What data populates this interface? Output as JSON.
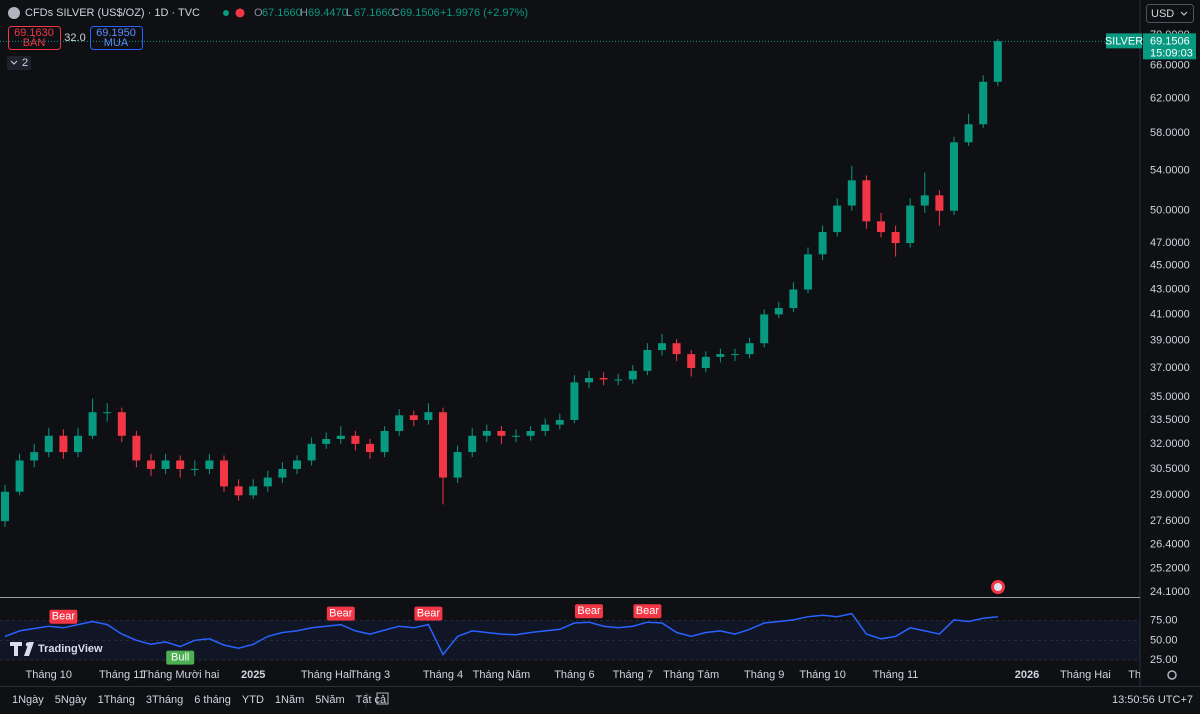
{
  "header": {
    "symbol": "CFDs SILVER (US$/OZ) · 1D · TVC",
    "ohlc": [
      {
        "label": "O",
        "value": "67.1660"
      },
      {
        "label": "H",
        "value": "69.4470"
      },
      {
        "label": "L",
        "value": "67.1660"
      },
      {
        "label": "C",
        "value": "69.1506"
      }
    ],
    "change": "+1.9976 (+2.97%)",
    "sell_price": "69.1630",
    "sell_label": "BÁN",
    "spread": "32.0",
    "buy_price": "69.1950",
    "buy_label": "MUA",
    "indicators_count": "2",
    "currency": "USD",
    "logo": "TradingView"
  },
  "toolbar": {
    "ranges": [
      "1Ngày",
      "5Ngày",
      "1Tháng",
      "3Tháng",
      "6 tháng",
      "YTD",
      "1Năm",
      "5Năm",
      "Tất cả"
    ],
    "clock": "13:50:56 UTC+7"
  },
  "chart_data": [
    {
      "type": "candlestick",
      "log_scale": true,
      "up_color": "#089981",
      "down_color": "#f23645",
      "categories": [
        null,
        null,
        null,
        "Tháng 10",
        null,
        null,
        null,
        null,
        "Tháng 11",
        null,
        null,
        null,
        "Tháng Mười hai",
        null,
        null,
        null,
        null,
        "2025",
        null,
        null,
        null,
        null,
        "Tháng Hai",
        null,
        null,
        "Tháng 3",
        null,
        null,
        null,
        null,
        "Tháng 4",
        null,
        null,
        null,
        "Tháng Năm",
        null,
        null,
        null,
        null,
        "Tháng 6",
        null,
        null,
        null,
        "Tháng 7",
        null,
        null,
        null,
        "Tháng Tám",
        null,
        null,
        null,
        null,
        "Tháng 9",
        null,
        null,
        null,
        "Tháng 10",
        null,
        null,
        null,
        null,
        "Tháng 11",
        null,
        null,
        null,
        null,
        null,
        null,
        null,
        null,
        "2026",
        null,
        null,
        null,
        "Tháng Hai",
        null,
        null,
        null,
        "Tháng"
      ],
      "open": [
        27.6,
        29.2,
        31,
        31.5,
        32.5,
        31.5,
        32.5,
        34,
        34,
        32.5,
        31,
        30.5,
        31,
        30.5,
        30.5,
        31,
        29.5,
        29,
        29.5,
        30,
        30.5,
        31,
        32,
        32.3,
        32.5,
        32,
        31.5,
        32.8,
        33.8,
        33.5,
        34,
        30,
        31.5,
        32.5,
        32.8,
        32.5,
        32.5,
        32.8,
        33.2,
        33.5,
        36,
        36.3,
        36.2,
        36.2,
        36.8,
        38.3,
        38.8,
        38,
        37,
        37.8,
        38,
        38,
        38.8,
        41,
        41.5,
        43,
        46,
        48,
        50.5,
        53,
        49,
        48,
        47,
        50.5,
        51.5,
        50,
        57,
        59,
        64,
        null,
        null,
        null,
        null,
        null,
        null,
        null,
        null,
        null,
        null
      ],
      "high": [
        29.6,
        31.4,
        32,
        33,
        32.9,
        33,
        34.9,
        34.6,
        34.3,
        32.8,
        31.4,
        31.4,
        31.3,
        31,
        31.4,
        31.3,
        29.9,
        29.9,
        30.4,
        30.9,
        31.3,
        32.4,
        32.7,
        33.1,
        32.8,
        32.3,
        33.1,
        34.2,
        34.1,
        34.6,
        34.3,
        31.9,
        33,
        33.2,
        33.1,
        32.9,
        33.1,
        33.6,
        33.9,
        36.5,
        36.8,
        36.7,
        36.6,
        37.2,
        38.8,
        39.5,
        39.1,
        38.3,
        38.2,
        38.4,
        38.4,
        39.2,
        41.4,
        42,
        43.6,
        46.6,
        48.6,
        51.2,
        54.5,
        53.5,
        49.8,
        48.6,
        51.2,
        53.8,
        52,
        57.6,
        60.2,
        64.8,
        69.45,
        null,
        null,
        null,
        null,
        null,
        null,
        null,
        null,
        null,
        null
      ],
      "low": [
        27.3,
        29,
        30.6,
        31.2,
        31.1,
        31.2,
        32.3,
        33.4,
        32.1,
        30.6,
        30.1,
        30.2,
        30,
        30.1,
        30.2,
        29.2,
        28.7,
        28.8,
        29.2,
        29.7,
        30.2,
        30.7,
        31.7,
        32,
        31.6,
        31.1,
        31.2,
        32.5,
        33.1,
        33.2,
        28.5,
        29.7,
        31.2,
        32.1,
        32,
        32.1,
        32.2,
        32.5,
        32.9,
        33.3,
        35.6,
        35.8,
        35.8,
        35.9,
        36.5,
        37.9,
        37.5,
        36.4,
        36.7,
        37.4,
        37.5,
        37.7,
        38.5,
        40.7,
        41.2,
        42.7,
        45.5,
        47.6,
        50,
        48.3,
        47.5,
        45.8,
        46.6,
        49.8,
        48.6,
        49.6,
        56.6,
        58.6,
        63.5,
        null,
        null,
        null,
        null,
        null,
        null,
        null,
        null,
        null,
        null
      ],
      "close": [
        29.2,
        31,
        31.5,
        32.5,
        31.5,
        32.5,
        34,
        34,
        32.5,
        31,
        30.5,
        31,
        30.5,
        30.5,
        31,
        29.5,
        29,
        29.5,
        30,
        30.5,
        31,
        32,
        32.3,
        32.5,
        32,
        31.5,
        32.8,
        33.8,
        33.5,
        34,
        30,
        31.5,
        32.5,
        32.8,
        32.5,
        32.5,
        32.8,
        33.2,
        33.5,
        36,
        36.3,
        36.2,
        36.2,
        36.8,
        38.3,
        38.8,
        38,
        37,
        37.8,
        38,
        38,
        38.8,
        41,
        41.5,
        43,
        46,
        48,
        50.5,
        53,
        49,
        48,
        47,
        50.5,
        51.5,
        50,
        57,
        59,
        64,
        69.15,
        null,
        null,
        null,
        null,
        null,
        null,
        null,
        null,
        null,
        null
      ],
      "ylim": [
        23.87,
        70.67
      ],
      "yticks": [
        {
          "value": 70,
          "label": "70.0000"
        },
        {
          "value": 66,
          "label": "66.0000"
        },
        {
          "value": 62,
          "label": "62.0000"
        },
        {
          "value": 58,
          "label": "58.0000"
        },
        {
          "value": 54,
          "label": "54.0000"
        },
        {
          "value": 50,
          "label": "50.0000"
        },
        {
          "value": 47,
          "label": "47.0000"
        },
        {
          "value": 45,
          "label": "45.0000"
        },
        {
          "value": 43,
          "label": "43.0000"
        },
        {
          "value": 41,
          "label": "41.0000"
        },
        {
          "value": 39,
          "label": "39.0000"
        },
        {
          "value": 37,
          "label": "37.0000"
        },
        {
          "value": 35,
          "label": "35.0000"
        },
        {
          "value": 33.5,
          "label": "33.5000"
        },
        {
          "value": 32,
          "label": "32.0000"
        },
        {
          "value": 30.5,
          "label": "30.5000"
        },
        {
          "value": 29,
          "label": "29.0000"
        },
        {
          "value": 27.6,
          "label": "27.6000"
        },
        {
          "value": 26.4,
          "label": "26.4000"
        },
        {
          "value": 25.2,
          "label": "25.2000"
        },
        {
          "value": 24.1,
          "label": "24.1000"
        }
      ],
      "last_price": {
        "symbol": "SILVER",
        "value": 69.1506,
        "countdown": "15:09:03",
        "color": "#089981"
      }
    },
    {
      "type": "line",
      "color": "#2962ff",
      "grid": true,
      "values": [
        55,
        62,
        65,
        68,
        66,
        70,
        74,
        70,
        58,
        50,
        45,
        48,
        42,
        50,
        52,
        44,
        40,
        45,
        55,
        60,
        62,
        66,
        68,
        70,
        62,
        58,
        63,
        68,
        66,
        70,
        32,
        55,
        62,
        60,
        58,
        57,
        60,
        62,
        64,
        72,
        73,
        68,
        66,
        68,
        73,
        72,
        60,
        55,
        60,
        62,
        58,
        64,
        72,
        74,
        76,
        80,
        82,
        80,
        84,
        58,
        52,
        55,
        66,
        62,
        58,
        76,
        74,
        78,
        80,
        null,
        null,
        null,
        null,
        null,
        null,
        null,
        null,
        null,
        null
      ],
      "signals": [
        null,
        null,
        null,
        null,
        {
          "text": "Bear",
          "color": "#f23645",
          "side": "above"
        },
        null,
        null,
        null,
        null,
        null,
        null,
        null,
        {
          "text": "Bull",
          "color": "#4caf50",
          "side": "below"
        },
        null,
        null,
        null,
        null,
        null,
        null,
        null,
        null,
        null,
        null,
        {
          "text": "Bear",
          "color": "#f23645",
          "side": "above"
        },
        null,
        null,
        null,
        null,
        null,
        {
          "text": "Bear",
          "color": "#f23645",
          "side": "above"
        },
        null,
        null,
        null,
        null,
        null,
        null,
        null,
        null,
        null,
        null,
        {
          "text": "Bear",
          "color": "#f23645",
          "side": "above"
        },
        null,
        null,
        null,
        {
          "text": "Bear",
          "color": "#f23645",
          "side": "above"
        },
        null,
        null,
        null,
        null,
        null,
        null,
        null,
        null,
        null,
        null,
        null,
        null,
        null,
        null,
        null,
        null,
        null,
        null,
        null,
        null,
        null,
        null,
        null,
        null,
        null,
        null,
        null,
        null,
        null,
        null,
        null,
        null,
        null,
        null,
        null,
        null,
        null,
        null
      ],
      "ylim": [
        22.5,
        101.25
      ],
      "yticks": [
        {
          "value": 75,
          "label": "75.00"
        },
        {
          "value": 50,
          "label": "50.00"
        },
        {
          "value": 25,
          "label": "25.00"
        }
      ]
    }
  ]
}
